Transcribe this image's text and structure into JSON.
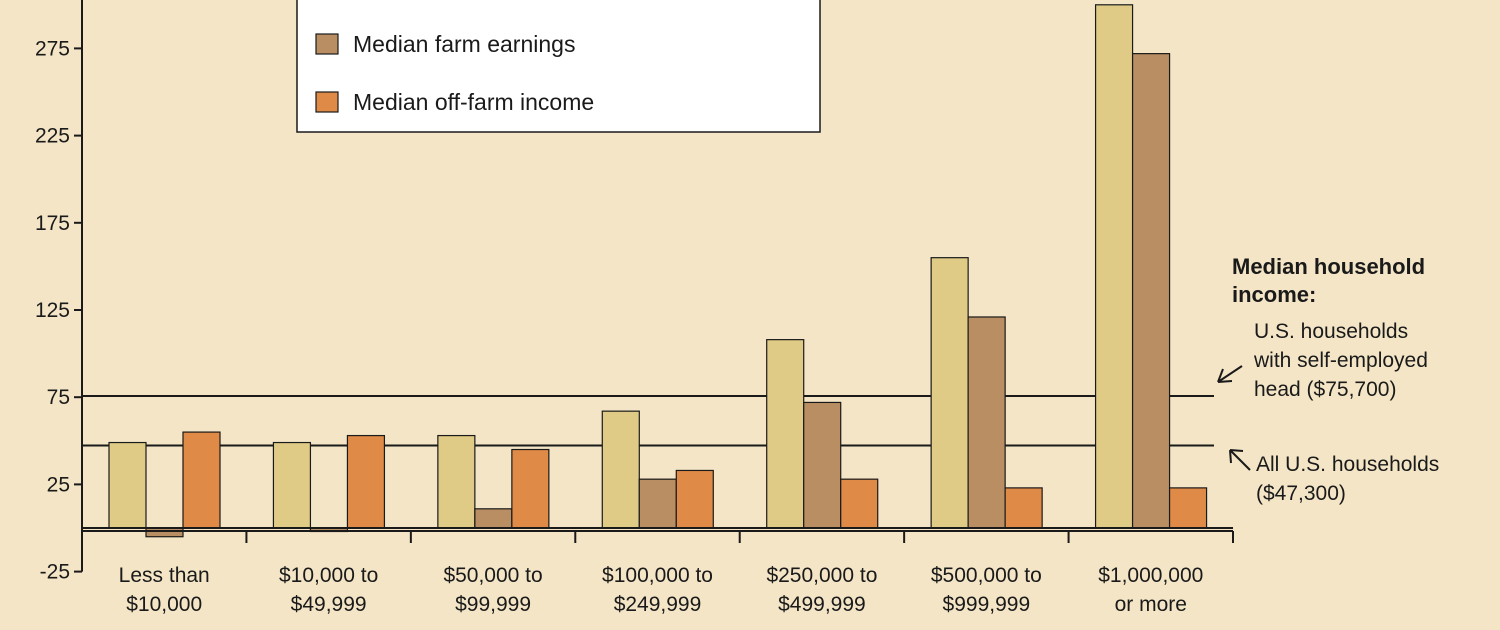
{
  "chart_data": {
    "type": "bar",
    "title": "",
    "xlabel": "",
    "ylabel": "",
    "categories": [
      [
        "Less than",
        "$10,000"
      ],
      [
        "$10,000 to",
        "$49,999"
      ],
      [
        "$50,000 to",
        "$99,999"
      ],
      [
        "$100,000 to",
        "$249,999"
      ],
      [
        "$250,000 to",
        "$499,999"
      ],
      [
        "$500,000 to",
        "$999,999"
      ],
      [
        "$1,000,000",
        "or more"
      ]
    ],
    "series": [
      {
        "name": "",
        "color": "#e0cb86",
        "values": [
          49,
          49,
          53,
          67,
          108,
          155,
          300
        ]
      },
      {
        "name": "Median farm earnings",
        "color": "#b88e62",
        "values": [
          -5,
          -2,
          11,
          28,
          72,
          121,
          272
        ]
      },
      {
        "name": "Median off-farm income",
        "color": "#df8a47",
        "values": [
          55,
          53,
          45,
          33,
          28,
          23,
          23
        ]
      }
    ],
    "ylim": [
      -25,
      300
    ],
    "yticks": [
      -25,
      25,
      75,
      125,
      175,
      225,
      275
    ],
    "reference_lines": [
      {
        "value": 75.7,
        "title": "Median household income:",
        "label": [
          "U.S. households",
          "with self-employed",
          "head ($75,700)"
        ]
      },
      {
        "value": 47.3,
        "label": [
          "All U.S. households",
          "($47,300)"
        ]
      }
    ],
    "legend_position": "top-center",
    "grid": false
  }
}
